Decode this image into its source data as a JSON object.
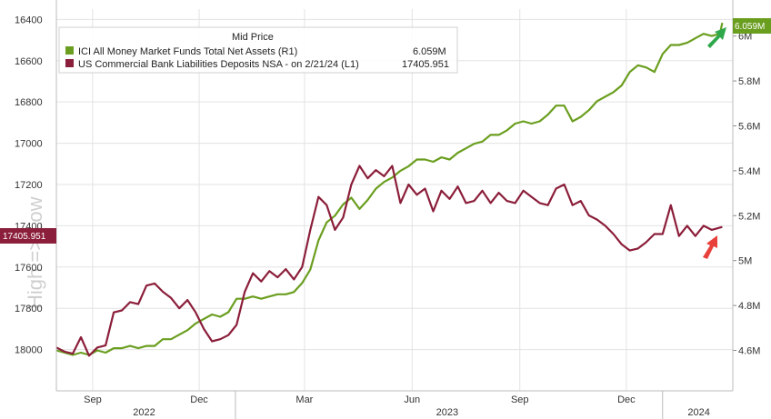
{
  "colors": {
    "mmf": "#6a9e1f",
    "deposits": "#8b1e3a",
    "grid": "#e3e3e3",
    "green_arrow": "#2ea84a",
    "red_arrow": "#e8403a"
  },
  "watermark": "High => Low",
  "chart_data": {
    "type": "line",
    "legend": {
      "title": "Mid Price",
      "placement": "top-left",
      "entries": [
        {
          "label": "ICI All Money Market Funds Total Net Assets  (R1)",
          "value": "6.059M"
        },
        {
          "label": "US Commercial Bank Liabilities Deposits NSA -  on 2/21/24  (L1)",
          "value": "17405.951"
        }
      ]
    },
    "x_ticks": {
      "months": [
        "Sep",
        "Dec",
        "Mar",
        "Jun",
        "Sep",
        "Dec"
      ],
      "month_dates": [
        "2022-09-01",
        "2022-12-01",
        "2023-03-01",
        "2023-06-01",
        "2023-09-01",
        "2023-12-01"
      ],
      "years": [
        "2022",
        "2023",
        "2024"
      ],
      "year_dates": [
        "2022-10-15",
        "2023-07-01",
        "2024-02-01"
      ]
    },
    "x_range": [
      "2022-08-01",
      "2024-03-01"
    ],
    "left_axis": {
      "inverted": true,
      "range": [
        16350,
        18200
      ],
      "ticks": [
        "16400",
        "16600",
        "16800",
        "17000",
        "17200",
        "17400",
        "17600",
        "17800",
        "18000"
      ],
      "last_value_badge": "17405.951"
    },
    "right_axis": {
      "range": [
        4.42,
        6.12
      ],
      "ticks": [
        "4.6M",
        "4.8M",
        "5M",
        "5.2M",
        "5.4M",
        "5.6M",
        "5.8M",
        "6M"
      ],
      "last_value_badge": "6.059M"
    },
    "series": [
      {
        "name": "ICI All Money Market Funds Total Net Assets",
        "axis": "right",
        "points": [
          [
            "2022-08-01",
            4.6
          ],
          [
            "2022-08-08",
            4.59
          ],
          [
            "2022-08-15",
            4.58
          ],
          [
            "2022-08-22",
            4.59
          ],
          [
            "2022-08-29",
            4.58
          ],
          [
            "2022-09-05",
            4.6
          ],
          [
            "2022-09-12",
            4.59
          ],
          [
            "2022-09-19",
            4.61
          ],
          [
            "2022-09-26",
            4.61
          ],
          [
            "2022-10-03",
            4.62
          ],
          [
            "2022-10-10",
            4.61
          ],
          [
            "2022-10-17",
            4.62
          ],
          [
            "2022-10-24",
            4.62
          ],
          [
            "2022-10-31",
            4.65
          ],
          [
            "2022-11-07",
            4.65
          ],
          [
            "2022-11-14",
            4.67
          ],
          [
            "2022-11-21",
            4.69
          ],
          [
            "2022-11-28",
            4.72
          ],
          [
            "2022-12-05",
            4.74
          ],
          [
            "2022-12-12",
            4.76
          ],
          [
            "2022-12-19",
            4.75
          ],
          [
            "2022-12-26",
            4.77
          ],
          [
            "2023-01-02",
            4.83
          ],
          [
            "2023-01-09",
            4.83
          ],
          [
            "2023-01-16",
            4.84
          ],
          [
            "2023-01-23",
            4.83
          ],
          [
            "2023-01-30",
            4.84
          ],
          [
            "2023-02-06",
            4.85
          ],
          [
            "2023-02-13",
            4.85
          ],
          [
            "2023-02-20",
            4.86
          ],
          [
            "2023-02-27",
            4.9
          ],
          [
            "2023-03-06",
            4.96
          ],
          [
            "2023-03-13",
            5.09
          ],
          [
            "2023-03-20",
            5.17
          ],
          [
            "2023-03-27",
            5.2
          ],
          [
            "2023-04-03",
            5.25
          ],
          [
            "2023-04-10",
            5.28
          ],
          [
            "2023-04-17",
            5.23
          ],
          [
            "2023-04-24",
            5.27
          ],
          [
            "2023-05-01",
            5.32
          ],
          [
            "2023-05-08",
            5.35
          ],
          [
            "2023-05-15",
            5.37
          ],
          [
            "2023-05-22",
            5.4
          ],
          [
            "2023-05-29",
            5.42
          ],
          [
            "2023-06-05",
            5.45
          ],
          [
            "2023-06-12",
            5.45
          ],
          [
            "2023-06-19",
            5.44
          ],
          [
            "2023-06-26",
            5.46
          ],
          [
            "2023-07-03",
            5.45
          ],
          [
            "2023-07-10",
            5.48
          ],
          [
            "2023-07-17",
            5.5
          ],
          [
            "2023-07-24",
            5.52
          ],
          [
            "2023-07-31",
            5.53
          ],
          [
            "2023-08-07",
            5.56
          ],
          [
            "2023-08-14",
            5.56
          ],
          [
            "2023-08-21",
            5.58
          ],
          [
            "2023-08-28",
            5.61
          ],
          [
            "2023-09-04",
            5.62
          ],
          [
            "2023-09-11",
            5.61
          ],
          [
            "2023-09-18",
            5.62
          ],
          [
            "2023-09-25",
            5.65
          ],
          [
            "2023-10-02",
            5.69
          ],
          [
            "2023-10-09",
            5.69
          ],
          [
            "2023-10-16",
            5.62
          ],
          [
            "2023-10-23",
            5.64
          ],
          [
            "2023-10-30",
            5.67
          ],
          [
            "2023-11-06",
            5.71
          ],
          [
            "2023-11-13",
            5.73
          ],
          [
            "2023-11-20",
            5.75
          ],
          [
            "2023-11-27",
            5.78
          ],
          [
            "2023-12-04",
            5.84
          ],
          [
            "2023-12-11",
            5.87
          ],
          [
            "2023-12-18",
            5.86
          ],
          [
            "2023-12-25",
            5.84
          ],
          [
            "2024-01-01",
            5.92
          ],
          [
            "2024-01-08",
            5.96
          ],
          [
            "2024-01-15",
            5.96
          ],
          [
            "2024-01-22",
            5.97
          ],
          [
            "2024-01-29",
            5.99
          ],
          [
            "2024-02-05",
            6.01
          ],
          [
            "2024-02-12",
            6.0
          ],
          [
            "2024-02-19",
            6.01
          ],
          [
            "2024-02-21",
            6.059
          ]
        ]
      },
      {
        "name": "US Commercial Bank Liabilities Deposits NSA",
        "axis": "left",
        "points": [
          [
            "2022-08-01",
            17990
          ],
          [
            "2022-08-08",
            18010
          ],
          [
            "2022-08-15",
            18020
          ],
          [
            "2022-08-22",
            17940
          ],
          [
            "2022-08-29",
            18030
          ],
          [
            "2022-09-05",
            17990
          ],
          [
            "2022-09-12",
            17980
          ],
          [
            "2022-09-19",
            17820
          ],
          [
            "2022-09-26",
            17810
          ],
          [
            "2022-10-03",
            17770
          ],
          [
            "2022-10-10",
            17780
          ],
          [
            "2022-10-17",
            17690
          ],
          [
            "2022-10-24",
            17680
          ],
          [
            "2022-10-31",
            17720
          ],
          [
            "2022-11-07",
            17750
          ],
          [
            "2022-11-14",
            17800
          ],
          [
            "2022-11-21",
            17760
          ],
          [
            "2022-11-28",
            17820
          ],
          [
            "2022-12-05",
            17900
          ],
          [
            "2022-12-12",
            17960
          ],
          [
            "2022-12-19",
            17950
          ],
          [
            "2022-12-26",
            17930
          ],
          [
            "2023-01-02",
            17880
          ],
          [
            "2023-01-09",
            17720
          ],
          [
            "2023-01-16",
            17630
          ],
          [
            "2023-01-23",
            17670
          ],
          [
            "2023-01-30",
            17620
          ],
          [
            "2023-02-06",
            17650
          ],
          [
            "2023-02-13",
            17610
          ],
          [
            "2023-02-20",
            17660
          ],
          [
            "2023-02-27",
            17600
          ],
          [
            "2023-03-06",
            17420
          ],
          [
            "2023-03-13",
            17260
          ],
          [
            "2023-03-20",
            17300
          ],
          [
            "2023-03-27",
            17420
          ],
          [
            "2023-04-03",
            17360
          ],
          [
            "2023-04-10",
            17200
          ],
          [
            "2023-04-17",
            17110
          ],
          [
            "2023-04-24",
            17170
          ],
          [
            "2023-05-01",
            17130
          ],
          [
            "2023-05-08",
            17160
          ],
          [
            "2023-05-15",
            17110
          ],
          [
            "2023-05-22",
            17290
          ],
          [
            "2023-05-29",
            17200
          ],
          [
            "2023-06-05",
            17250
          ],
          [
            "2023-06-12",
            17220
          ],
          [
            "2023-06-19",
            17330
          ],
          [
            "2023-06-26",
            17230
          ],
          [
            "2023-07-03",
            17270
          ],
          [
            "2023-07-10",
            17210
          ],
          [
            "2023-07-17",
            17290
          ],
          [
            "2023-07-24",
            17280
          ],
          [
            "2023-07-31",
            17230
          ],
          [
            "2023-08-07",
            17290
          ],
          [
            "2023-08-14",
            17240
          ],
          [
            "2023-08-21",
            17280
          ],
          [
            "2023-08-28",
            17290
          ],
          [
            "2023-09-04",
            17230
          ],
          [
            "2023-09-11",
            17260
          ],
          [
            "2023-09-18",
            17290
          ],
          [
            "2023-09-25",
            17300
          ],
          [
            "2023-10-02",
            17220
          ],
          [
            "2023-10-09",
            17200
          ],
          [
            "2023-10-16",
            17300
          ],
          [
            "2023-10-23",
            17280
          ],
          [
            "2023-10-30",
            17350
          ],
          [
            "2023-11-06",
            17370
          ],
          [
            "2023-11-13",
            17400
          ],
          [
            "2023-11-20",
            17440
          ],
          [
            "2023-11-27",
            17490
          ],
          [
            "2023-12-04",
            17520
          ],
          [
            "2023-12-11",
            17510
          ],
          [
            "2023-12-18",
            17480
          ],
          [
            "2023-12-25",
            17440
          ],
          [
            "2024-01-01",
            17440
          ],
          [
            "2024-01-08",
            17300
          ],
          [
            "2024-01-15",
            17450
          ],
          [
            "2024-01-22",
            17400
          ],
          [
            "2024-01-29",
            17450
          ],
          [
            "2024-02-05",
            17400
          ],
          [
            "2024-02-12",
            17420
          ],
          [
            "2024-02-21",
            17405.951
          ]
        ]
      }
    ],
    "grid": true
  }
}
